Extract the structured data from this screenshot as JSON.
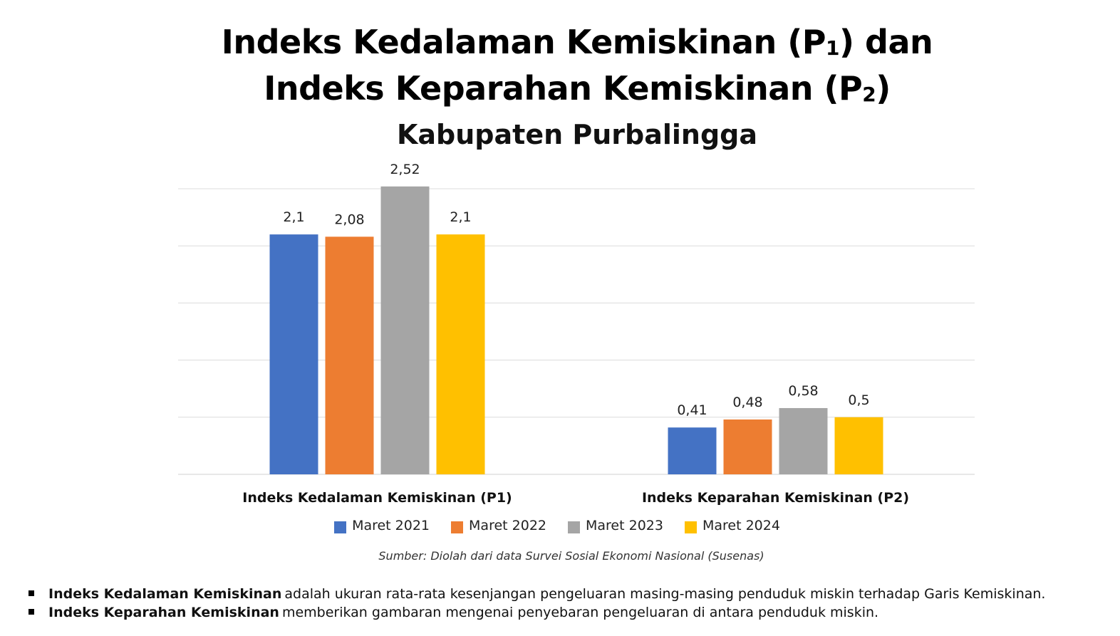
{
  "header": {
    "title_line1_pre": "Indeks Kedalaman Kemiskinan (P",
    "title_line1_sub": "1",
    "title_line1_post": ") dan",
    "title_line2_pre": "Indeks Keparahan Kemiskinan (P",
    "title_line2_sub": "2",
    "title_line2_post": ")",
    "subtitle": "Kabupaten Purbalingga"
  },
  "chart_data": {
    "type": "bar",
    "categories": [
      "Indeks Kedalaman Kemiskinan (P1)",
      "Indeks Keparahan Kemiskinan (P2)"
    ],
    "series": [
      {
        "name": "Maret 2021",
        "color": "#4472C4",
        "values": [
          2.1,
          0.41
        ],
        "labels": [
          "2,1",
          "0,41"
        ]
      },
      {
        "name": "Maret 2022",
        "color": "#ED7D31",
        "values": [
          2.08,
          0.48
        ],
        "labels": [
          "2,08",
          "0,48"
        ]
      },
      {
        "name": "Maret 2023",
        "color": "#A5A5A5",
        "values": [
          2.52,
          0.58
        ],
        "labels": [
          "2,52",
          "0,58"
        ]
      },
      {
        "name": "Maret 2024",
        "color": "#FFC000",
        "values": [
          2.1,
          0.5
        ],
        "labels": [
          "2,1",
          "0,5"
        ]
      }
    ],
    "ylim": [
      0,
      2.5
    ],
    "gridlines": true,
    "legend_position": "bottom"
  },
  "source": "Sumber: Diolah dari data Survei Sosial Ekonomi Nasional (Susenas)",
  "notes": [
    {
      "term": "Indeks Kedalaman Kemiskinan",
      "text": "adalah ukuran rata-rata kesenjangan pengeluaran masing-masing penduduk miskin terhadap Garis Kemiskinan."
    },
    {
      "term": "Indeks Keparahan Kemiskinan",
      "text": "memberikan gambaran mengenai penyebaran pengeluaran di antara penduduk miskin."
    }
  ]
}
